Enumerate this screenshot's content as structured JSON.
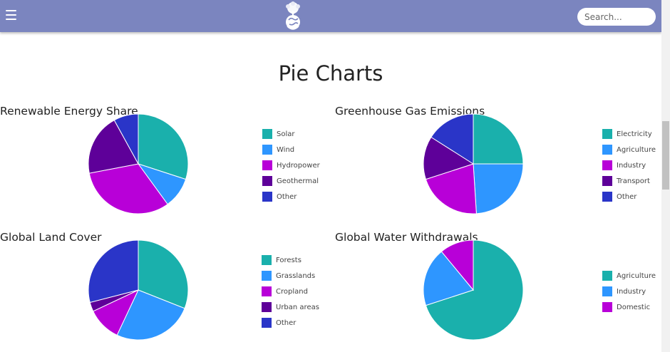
{
  "header": {
    "search_placeholder": "Search..."
  },
  "page": {
    "title": "Pie Charts"
  },
  "chart_data": [
    {
      "type": "pie",
      "title": "Renewable Energy Share",
      "categories": [
        "Solar",
        "Wind",
        "Hydropower",
        "Geothermal",
        "Other"
      ],
      "values": [
        30,
        10,
        32,
        20,
        8
      ],
      "colors": [
        "#1ab0ac",
        "#2e96ff",
        "#b800d8",
        "#5e0099",
        "#2a35c8"
      ]
    },
    {
      "type": "pie",
      "title": "Greenhouse Gas Emissions",
      "categories": [
        "Electricity",
        "Agriculture",
        "Industry",
        "Transport",
        "Other"
      ],
      "values": [
        25,
        24,
        21,
        14,
        16
      ],
      "colors": [
        "#1ab0ac",
        "#2e96ff",
        "#b800d8",
        "#5e0099",
        "#2a35c8"
      ]
    },
    {
      "type": "pie",
      "title": "Global Land Cover",
      "categories": [
        "Forests",
        "Grasslands",
        "Cropland",
        "Urban areas",
        "Other"
      ],
      "values": [
        31,
        26,
        11,
        3,
        29
      ],
      "colors": [
        "#1ab0ac",
        "#2e96ff",
        "#b800d8",
        "#5e0099",
        "#2a35c8"
      ]
    },
    {
      "type": "pie",
      "title": "Global Water Withdrawals",
      "categories": [
        "Agriculture",
        "Industry",
        "Domestic"
      ],
      "values": [
        70,
        19,
        11
      ],
      "colors": [
        "#1ab0ac",
        "#2e96ff",
        "#b800d8"
      ]
    }
  ]
}
